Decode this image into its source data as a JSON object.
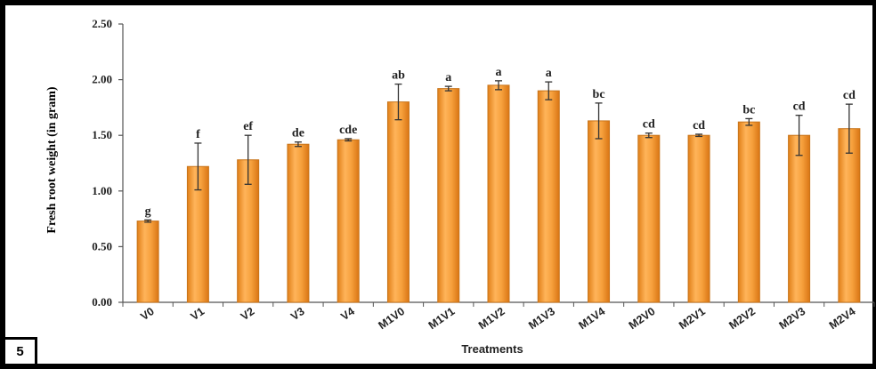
{
  "panel_label": "5",
  "chart_data": {
    "type": "bar",
    "title": "",
    "xlabel": "Treatments",
    "ylabel": "Fresh root weight (in gram)",
    "ylim": [
      0,
      2.5
    ],
    "yticks": [
      "0.00",
      "0.50",
      "1.00",
      "1.50",
      "2.00",
      "2.50"
    ],
    "categories": [
      "V0",
      "V1",
      "V2",
      "V3",
      "V4",
      "M1V0",
      "M1V1",
      "M1V2",
      "M1V3",
      "M1V4",
      "M2V0",
      "M2V1",
      "M2V2",
      "M2V3",
      "M2V4"
    ],
    "values": [
      0.73,
      1.22,
      1.28,
      1.42,
      1.46,
      1.8,
      1.92,
      1.95,
      1.9,
      1.63,
      1.5,
      1.5,
      1.62,
      1.5,
      1.56
    ],
    "errors": [
      0.01,
      0.21,
      0.22,
      0.02,
      0.01,
      0.16,
      0.02,
      0.04,
      0.08,
      0.16,
      0.02,
      0.01,
      0.03,
      0.18,
      0.22
    ],
    "significance_letters": [
      "g",
      "f",
      "ef",
      "de",
      "cde",
      "ab",
      "a",
      "a",
      "a",
      "bc",
      "cd",
      "cd",
      "bc",
      "cd",
      "cd"
    ],
    "bar_color": "#F29A2E",
    "bar_edge_color": "#C8741A",
    "grid": false,
    "legend": "none"
  }
}
